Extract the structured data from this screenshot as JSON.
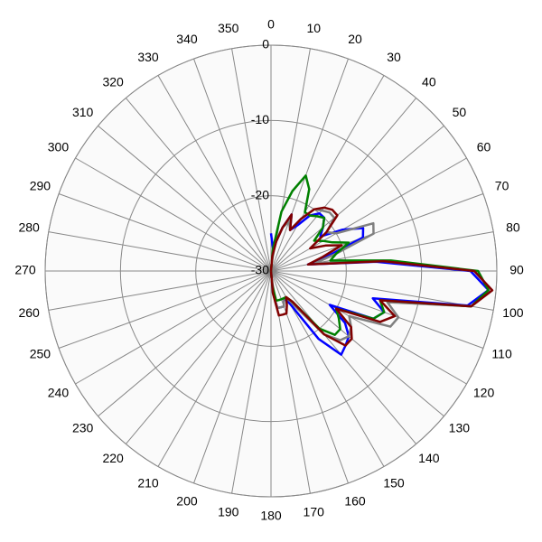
{
  "chart_data": {
    "type": "polar",
    "theta": [
      0,
      5,
      10,
      15,
      20,
      25,
      30,
      35,
      40,
      45,
      50,
      55,
      60,
      65,
      70,
      75,
      80,
      85,
      90,
      95,
      100,
      105,
      110,
      115,
      120,
      125,
      130,
      135,
      140,
      145,
      150,
      155,
      160,
      165,
      170,
      175,
      180
    ],
    "series": [
      {
        "color": "#0000ff",
        "values": [
          -25,
          -27,
          -26,
          -24,
          -22,
          -24,
          -23,
          -21,
          -20,
          -20,
          -21,
          -22,
          -19,
          -16.5,
          -17,
          -22,
          -25,
          -16,
          -3.5,
          -1,
          -3.5,
          -16,
          -14,
          -15,
          -21,
          -18,
          -16.5,
          -16,
          -15.5,
          -19,
          -25,
          -26,
          -25,
          -25,
          -25,
          -27,
          -30
        ]
      },
      {
        "color": "#808080",
        "values": [
          -30,
          -28,
          -26,
          -24,
          -23,
          -24,
          -22,
          -20,
          -19.5,
          -19,
          -19,
          -21,
          -20,
          -15,
          -15.5,
          -21,
          -24,
          -15,
          -3,
          -0.5,
          -3,
          -14,
          -12,
          -12.5,
          -18,
          -17,
          -16.5,
          -17,
          -19,
          -24,
          -26,
          -26,
          -25,
          -25,
          -25,
          -27,
          -30
        ]
      },
      {
        "color": "#008000",
        "values": [
          -30,
          -27,
          -22,
          -19,
          -16.5,
          -18,
          -21,
          -21,
          -20.5,
          -20,
          -21,
          -23,
          -22,
          -21,
          -19,
          -21,
          -22,
          -14,
          -2.5,
          -1,
          -3,
          -15,
          -14,
          -15,
          -20,
          -19,
          -18,
          -18,
          -20,
          -25,
          -26,
          -26,
          -26,
          -26,
          -26,
          -28,
          -30
        ]
      },
      {
        "color": "#800000",
        "values": [
          -30,
          -28,
          -26,
          -24,
          -22,
          -24,
          -22,
          -20,
          -19,
          -18.5,
          -18.5,
          -21,
          -24,
          -22,
          -20,
          -23,
          -25,
          -15,
          -3,
          -0.5,
          -3,
          -15,
          -12.5,
          -14,
          -20,
          -17,
          -16,
          -16,
          -19,
          -25,
          -26,
          -25,
          -24,
          -24,
          -24,
          -27,
          -30
        ]
      }
    ],
    "rlim": [
      -30,
      0
    ],
    "rticks": [
      -30,
      -20,
      -10,
      0
    ],
    "thetaticks": [
      0,
      10,
      20,
      30,
      40,
      50,
      60,
      70,
      80,
      90,
      100,
      110,
      120,
      130,
      140,
      150,
      160,
      170,
      180,
      190,
      200,
      210,
      220,
      230,
      240,
      250,
      260,
      270,
      280,
      290,
      300,
      310,
      320,
      330,
      340,
      350
    ]
  }
}
